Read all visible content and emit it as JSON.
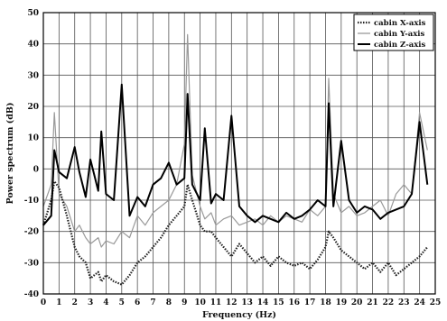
{
  "chart_data": {
    "type": "line",
    "title": "",
    "xlabel": "Frequency (Hz)",
    "ylabel": "Power spectrum (dB)",
    "xlim": [
      0,
      25
    ],
    "ylim": [
      -40,
      50
    ],
    "xticks": [
      "0",
      "1",
      "2",
      "3",
      "4",
      "5",
      "6",
      "7",
      "8",
      "9",
      "10",
      "11",
      "12",
      "13",
      "14",
      "15",
      "16",
      "17",
      "18",
      "19",
      "20",
      "21",
      "22",
      "23",
      "24",
      "25"
    ],
    "yticks": [
      "-40",
      "-30",
      "-20",
      "-10",
      "0",
      "10",
      "20",
      "30",
      "40",
      "50"
    ],
    "grid": true,
    "legend_position": "top-right",
    "x": [
      0,
      0.5,
      0.7,
      1,
      1.5,
      2,
      2.3,
      2.7,
      3,
      3.5,
      3.7,
      4,
      4.5,
      5,
      5.5,
      6,
      6.5,
      7,
      7.5,
      8,
      8.5,
      9,
      9.2,
      9.5,
      10,
      10.3,
      10.7,
      11,
      11.5,
      12,
      12.5,
      13,
      13.5,
      14,
      14.5,
      15,
      15.5,
      16,
      16.5,
      17,
      17.5,
      18,
      18.2,
      18.5,
      19,
      19.5,
      20,
      20.5,
      21,
      21.5,
      22,
      22.5,
      23,
      23.5,
      24,
      24.5
    ],
    "series": [
      {
        "name": "cabin X-axis",
        "color": "#222222",
        "style": "dotted",
        "values": [
          -18,
          -10,
          -4,
          -6,
          -15,
          -25,
          -28,
          -30,
          -35,
          -33,
          -36,
          -34,
          -36,
          -37,
          -34,
          -30,
          -28,
          -25,
          -22,
          -18,
          -15,
          -12,
          -5,
          -10,
          -18,
          -20,
          -20,
          -22,
          -25,
          -28,
          -24,
          -27,
          -30,
          -28,
          -31,
          -28,
          -30,
          -31,
          -30,
          -32,
          -29,
          -25,
          -20,
          -22,
          -26,
          -28,
          -30,
          -32,
          -30,
          -33,
          -30,
          -34,
          -32,
          -30,
          -28,
          -25
        ]
      },
      {
        "name": "cabin Y-axis",
        "color": "#999999",
        "style": "solid",
        "values": [
          -12,
          -5,
          18,
          -8,
          -12,
          -20,
          -18,
          -22,
          -24,
          -22,
          -25,
          -23,
          -24,
          -20,
          -22,
          -15,
          -18,
          -14,
          -12,
          -10,
          -5,
          8,
          43,
          -2,
          -12,
          -16,
          -14,
          -18,
          -16,
          -15,
          -18,
          -17,
          -16,
          -18,
          -15,
          -17,
          -15,
          -16,
          -17,
          -13,
          -15,
          -12,
          29,
          -8,
          -14,
          -12,
          -15,
          -14,
          -12,
          -10,
          -15,
          -8,
          -5,
          -8,
          18,
          6
        ]
      },
      {
        "name": "cabin Z-axis",
        "color": "#000000",
        "style": "solid",
        "values": [
          -18,
          -15,
          6,
          -1,
          -3,
          7,
          -1,
          -9,
          3,
          -7,
          12,
          -8,
          -10,
          27,
          -15,
          -9,
          -12,
          -5,
          -3,
          2,
          -5,
          -3,
          24,
          -5,
          -10,
          13,
          -11,
          -8,
          -10,
          17,
          -12,
          -15,
          -17,
          -15,
          -16,
          -17,
          -14,
          -16,
          -15,
          -13,
          -10,
          -12,
          21,
          -12,
          9,
          -10,
          -14,
          -12,
          -13,
          -16,
          -14,
          -13,
          -12,
          -8,
          15,
          -5
        ]
      }
    ]
  }
}
